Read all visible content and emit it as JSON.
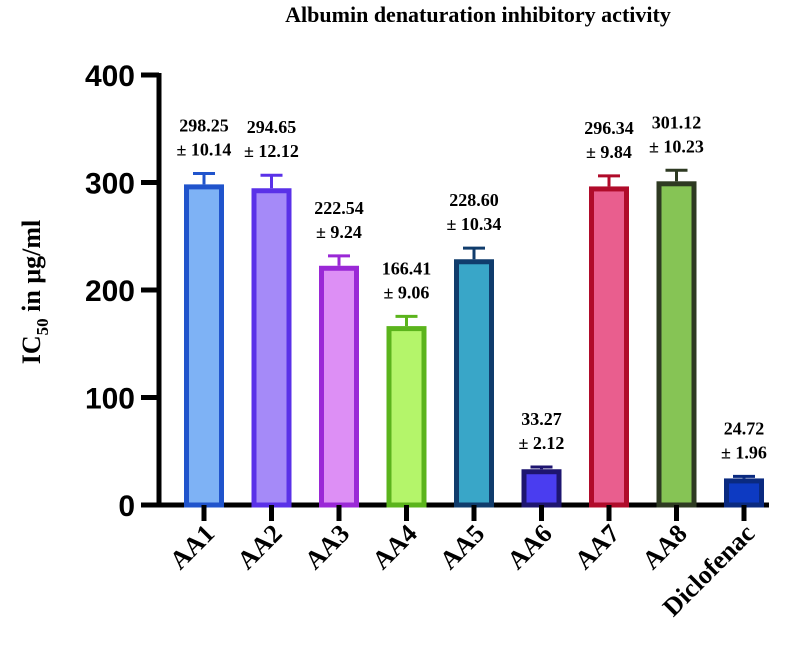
{
  "chart_data": {
    "type": "bar",
    "title": "Albumin denaturation inhibitory activity",
    "ylabel_main": "IC",
    "ylabel_sub": "50",
    "ylabel_rest": " in μg/ml",
    "xlabel": "",
    "ylim": [
      0,
      400
    ],
    "yticks": [
      "0",
      "100",
      "200",
      "300",
      "400"
    ],
    "ytick_values": [
      0,
      100,
      200,
      300,
      400
    ],
    "categories": [
      "AA1",
      "AA2",
      "AA3",
      "AA4",
      "AA5",
      "AA6",
      "AA7",
      "AA8",
      "Diclofenac"
    ],
    "values": [
      298.25,
      294.65,
      222.54,
      166.41,
      228.6,
      33.27,
      296.34,
      301.12,
      24.72
    ],
    "errors": [
      10.14,
      12.12,
      9.24,
      9.06,
      10.34,
      2.12,
      9.84,
      10.23,
      1.96
    ],
    "value_labels": [
      "298.25",
      "294.65",
      "222.54",
      "166.41",
      "228.60",
      "33.27",
      "296.34",
      "301.12",
      "24.72"
    ],
    "error_labels": [
      "± 10.14",
      "± 12.12",
      "± 9.24",
      "± 9.06",
      "± 10.34",
      "± 2.12",
      "± 9.84",
      "± 10.23",
      "± 1.96"
    ],
    "fill_colors": [
      "#7eb2f5",
      "#a58af8",
      "#dd8ff5",
      "#b4f56a",
      "#39a6c8",
      "#4a3df0",
      "#e95e8e",
      "#86c455",
      "#0d3ac2"
    ],
    "edge_colors": [
      "#2054cc",
      "#5a31e8",
      "#9a28d6",
      "#5bb41c",
      "#103c6c",
      "#1e1570",
      "#b00b2a",
      "#2e3a22",
      "#0a2a80"
    ],
    "grid": false,
    "legend": "none"
  }
}
